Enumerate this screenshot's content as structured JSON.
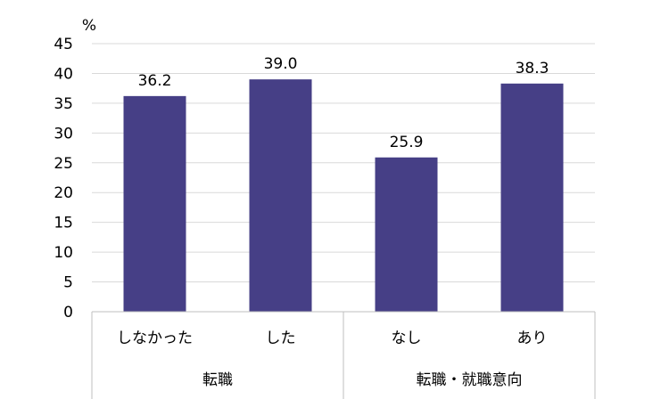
{
  "chart_data": {
    "type": "bar",
    "unit_label": "%",
    "categories": [
      "しなかった",
      "した",
      "なし",
      "あり"
    ],
    "groups": [
      {
        "label": "転職",
        "categories": [
          "しなかった",
          "した"
        ]
      },
      {
        "label": "転職・就職意向",
        "categories": [
          "なし",
          "あり"
        ]
      }
    ],
    "values": [
      36.2,
      39.0,
      25.9,
      38.3
    ],
    "value_labels": [
      "36.2",
      "39.0",
      "25.9",
      "38.3"
    ],
    "ylim": [
      0,
      45
    ],
    "yticks": [
      0,
      5,
      10,
      15,
      20,
      25,
      30,
      35,
      40,
      45
    ],
    "grid": true,
    "bar_color": "#463f86",
    "grid_color": "#d9d9d9",
    "axis_color": "#bfbfbf"
  }
}
